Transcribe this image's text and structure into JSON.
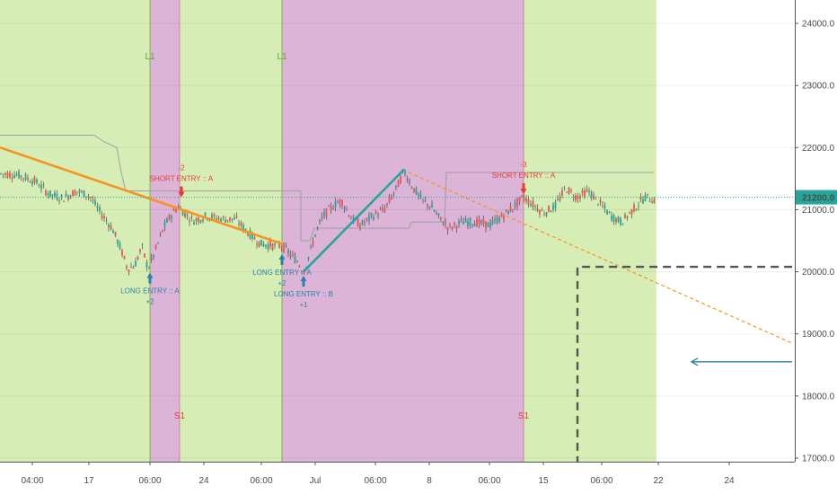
{
  "chart_data": {
    "type": "candlestick",
    "y_axis": {
      "ticks": [
        "24000.0",
        "23000.0",
        "22000.0",
        "21000.0",
        "20000.0",
        "19000.0",
        "18000.0",
        "17000.0"
      ],
      "ylim": [
        16900,
        24500
      ]
    },
    "x_axis": {
      "ticks": [
        "04:00",
        "17",
        "06:00",
        "24",
        "06:00",
        "Jul",
        "06:00",
        "8",
        "06:00",
        "15",
        "06:00",
        "22",
        "24"
      ]
    },
    "last_price": {
      "label": "21200.0",
      "value": 21200
    },
    "zones": [
      {
        "kind": "long",
        "from": 0,
        "to": 167
      },
      {
        "kind": "short",
        "from": 167,
        "to": 200
      },
      {
        "kind": "long",
        "from": 200,
        "to": 314
      },
      {
        "kind": "short",
        "from": 314,
        "to": 583
      },
      {
        "kind": "long",
        "from": 583,
        "to": 731
      }
    ],
    "zone_labels": [
      {
        "text": "L1",
        "x": 167,
        "pos": "top"
      },
      {
        "text": "L1",
        "x": 314,
        "pos": "top"
      },
      {
        "text": "S1",
        "x": 200,
        "pos": "bottom"
      },
      {
        "text": "S1",
        "x": 583,
        "pos": "bottom"
      }
    ],
    "signals": [
      {
        "type": "long",
        "label": "LONG ENTRY :: A",
        "qty": "+2",
        "price": 20000,
        "x": 167
      },
      {
        "type": "short",
        "label": "SHORT ENTRY :: A",
        "qty": "-2",
        "price": 21200,
        "x": 202
      },
      {
        "type": "long",
        "label": "LONG ENTRY :: A",
        "qty": "+2",
        "price": 20300,
        "x": 314
      },
      {
        "type": "long",
        "label": "LONG ENTRY :: B",
        "qty": "+1",
        "price": 19950,
        "x": 338
      },
      {
        "type": "short",
        "label": "SHORT ENTRY :: A",
        "qty": "-3",
        "price": 21250,
        "x": 583
      }
    ],
    "price_path": [
      [
        0,
        21580
      ],
      [
        20,
        21560
      ],
      [
        40,
        21450
      ],
      [
        55,
        21250
      ],
      [
        70,
        21180
      ],
      [
        85,
        21300
      ],
      [
        100,
        21220
      ],
      [
        112,
        20950
      ],
      [
        125,
        20700
      ],
      [
        135,
        20350
      ],
      [
        142,
        20050
      ],
      [
        150,
        20100
      ],
      [
        158,
        20400
      ],
      [
        165,
        20050
      ],
      [
        172,
        20300
      ],
      [
        182,
        20700
      ],
      [
        190,
        20900
      ],
      [
        198,
        21050
      ],
      [
        205,
        20950
      ],
      [
        215,
        20820
      ],
      [
        230,
        20900
      ],
      [
        245,
        20850
      ],
      [
        262,
        20850
      ],
      [
        275,
        20650
      ],
      [
        290,
        20450
      ],
      [
        305,
        20420
      ],
      [
        314,
        20420
      ],
      [
        322,
        20300
      ],
      [
        332,
        20150
      ],
      [
        338,
        20000
      ],
      [
        345,
        20300
      ],
      [
        352,
        20650
      ],
      [
        360,
        20900
      ],
      [
        370,
        21050
      ],
      [
        380,
        21150
      ],
      [
        392,
        20850
      ],
      [
        402,
        20750
      ],
      [
        415,
        20900
      ],
      [
        428,
        21000
      ],
      [
        440,
        21300
      ],
      [
        450,
        21620
      ],
      [
        460,
        21350
      ],
      [
        470,
        21150
      ],
      [
        480,
        21050
      ],
      [
        490,
        20850
      ],
      [
        500,
        20700
      ],
      [
        515,
        20800
      ],
      [
        530,
        20800
      ],
      [
        545,
        20750
      ],
      [
        560,
        20900
      ],
      [
        572,
        21050
      ],
      [
        583,
        21200
      ],
      [
        592,
        21100
      ],
      [
        605,
        20950
      ],
      [
        618,
        21050
      ],
      [
        630,
        21350
      ],
      [
        642,
        21200
      ],
      [
        655,
        21300
      ],
      [
        668,
        21100
      ],
      [
        680,
        20900
      ],
      [
        692,
        20800
      ],
      [
        705,
        21000
      ],
      [
        718,
        21200
      ],
      [
        731,
        21150
      ]
    ],
    "stop_line": [
      [
        0,
        22200
      ],
      [
        105,
        22200
      ],
      [
        115,
        22100
      ],
      [
        130,
        22000
      ],
      [
        135,
        21600
      ],
      [
        140,
        21300
      ],
      [
        335,
        21300
      ],
      [
        335,
        20500
      ],
      [
        345,
        20500
      ],
      [
        350,
        20700
      ],
      [
        455,
        20700
      ],
      [
        458,
        20800
      ],
      [
        495,
        20800
      ],
      [
        497,
        21600
      ],
      [
        728,
        21600
      ]
    ],
    "trend_lines": [
      {
        "style": "solid",
        "color": "#f7931e",
        "from": [
          0,
          22000
        ],
        "to": [
          314,
          20450
        ]
      },
      {
        "style": "solid",
        "color": "#26a69a",
        "from": [
          338,
          20000
        ],
        "to": [
          450,
          21650
        ]
      },
      {
        "style": "dashed",
        "color": "#f7931e",
        "from": [
          455,
          21600
        ],
        "to": [
          882,
          18850
        ]
      }
    ],
    "target_box": {
      "x_left": 643,
      "y_top": 20080,
      "y_bottom": 16900
    },
    "arrow_line": {
      "price": 18550,
      "from": 882,
      "to": 770
    }
  },
  "colors": {
    "long_zone": "#d7edb6",
    "short_zone": "#dcb4d8",
    "up_candle": "#26a69a",
    "down_candle": "#ef5350",
    "price_line": "#26a69a",
    "long_signal": "#2a83a6",
    "short_signal": "#e53935"
  }
}
